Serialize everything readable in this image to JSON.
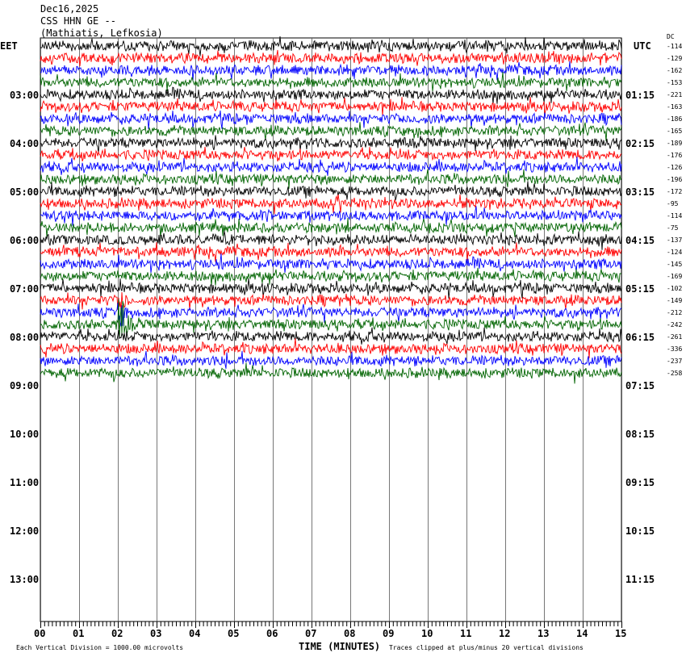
{
  "header": {
    "date": "Dec16,2025",
    "station": "CSS HHN GE --",
    "location": "(Mathiatis, Lefkosia)"
  },
  "chart_data": {
    "type": "line",
    "subtype": "helicorder",
    "left_timezone": "EET",
    "right_timezone": "UTC",
    "dc_label": "DC",
    "left_hour_labels": [
      "03:00",
      "04:00",
      "05:00",
      "06:00",
      "07:00",
      "08:00",
      "09:00",
      "10:00",
      "11:00",
      "12:00",
      "13:00"
    ],
    "right_hour_labels": [
      "01:15",
      "02:15",
      "03:15",
      "04:15",
      "05:15",
      "06:15",
      "07:15",
      "08:15",
      "09:15",
      "10:15",
      "11:15"
    ],
    "x_ticks": [
      "00",
      "01",
      "02",
      "03",
      "04",
      "05",
      "06",
      "07",
      "08",
      "09",
      "10",
      "11",
      "12",
      "13",
      "14",
      "15"
    ],
    "xlabel": "TIME (MINUTES)",
    "xlim": [
      0,
      15
    ],
    "trace_colors": [
      "#000000",
      "#ff0000",
      "#0000ff",
      "#006400"
    ],
    "dc_offsets": [
      -114,
      -129,
      -162,
      -153,
      -221,
      -163,
      -186,
      -165,
      -189,
      -176,
      -126,
      -196,
      -172,
      -95,
      -114,
      -75,
      -137,
      -124,
      -145,
      -169,
      -102,
      -149,
      -212,
      -242,
      -261,
      -336,
      -237,
      -258
    ],
    "event": {
      "minute": 2.1,
      "trace_index": 23
    },
    "scale_note": "Each Vertical Division = 1000.00 microvolts",
    "clip_note": "Traces clipped at plus/minus 20 vertical divisions",
    "grid": true
  }
}
